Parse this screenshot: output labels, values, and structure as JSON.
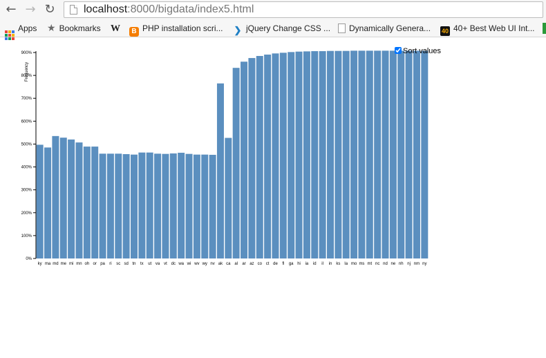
{
  "browser": {
    "url_host": "localhost",
    "url_path": ":8000/bigdata/index5.html",
    "bookmarks": [
      {
        "label": "Apps",
        "icon": "apps-grid-icon"
      },
      {
        "label": "Bookmarks",
        "icon": "star-icon"
      },
      {
        "label": "",
        "icon": "wikipedia-icon"
      },
      {
        "label": "PHP installation scri...",
        "icon": "blogger-icon"
      },
      {
        "label": "jQuery Change CSS ...",
        "icon": "jquery-icon"
      },
      {
        "label": "Dynamically Genera...",
        "icon": "document-icon"
      },
      {
        "label": "40+ Best Web UI Int...",
        "icon": "forty-icon"
      }
    ]
  },
  "legend": {
    "label": "Sort values",
    "checked": true
  },
  "colors": {
    "bar": "#5b8fbf",
    "axis": "#000000"
  },
  "chart_data": {
    "type": "bar",
    "title": "",
    "xlabel": "",
    "ylabel": "Frequency",
    "ylim": [
      0,
      900
    ],
    "yticks": [
      "0%",
      "100%",
      "200%",
      "300%",
      "400%",
      "500%",
      "600%",
      "700%",
      "800%",
      "900%"
    ],
    "categories": [
      "ky",
      "ma",
      "md",
      "me",
      "mi",
      "mn",
      "oh",
      "or",
      "pa",
      "ri",
      "sc",
      "sd",
      "tn",
      "tx",
      "ut",
      "va",
      "vt",
      "dc",
      "wa",
      "wi",
      "wv",
      "wy",
      "nv",
      "ak",
      "ca",
      "al",
      "ar",
      "az",
      "co",
      "ct",
      "de",
      "fl",
      "ga",
      "hi",
      "ia",
      "id",
      "il",
      "in",
      "ks",
      "la",
      "mo",
      "ms",
      "mt",
      "nc",
      "nd",
      "ne",
      "nh",
      "nj",
      "nm",
      "ny"
    ],
    "values": [
      497,
      485,
      535,
      528,
      520,
      507,
      489,
      489,
      458,
      458,
      458,
      456,
      454,
      463,
      463,
      458,
      457,
      459,
      462,
      457,
      454,
      454,
      453,
      765,
      527,
      833,
      860,
      876,
      885,
      891,
      896,
      899,
      902,
      904,
      905,
      906,
      906,
      907,
      907,
      907,
      908,
      908,
      908,
      908,
      908,
      908,
      908,
      908,
      908,
      908
    ]
  }
}
